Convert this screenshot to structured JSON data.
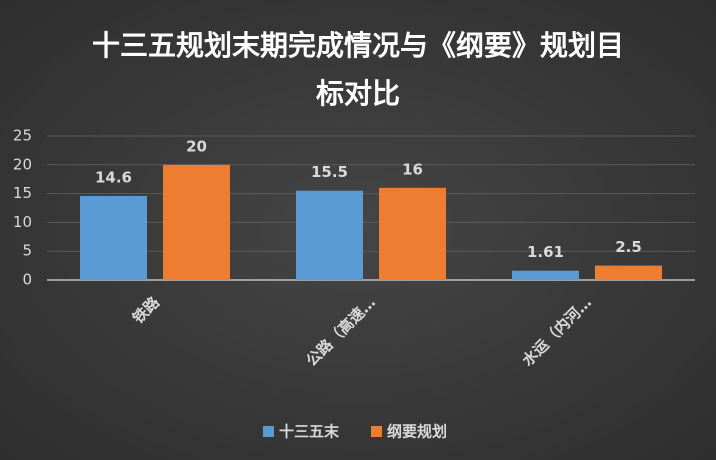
{
  "chart_data": {
    "type": "bar",
    "title": "十三五规划末期完成情况与《纲要》规划目标对比",
    "categories": [
      "铁路",
      "公路（高速…",
      "水运（内河…"
    ],
    "series": [
      {
        "name": "十三五末",
        "color": "#5b9bd5",
        "values": [
          14.6,
          15.5,
          1.61
        ]
      },
      {
        "name": "纲要规划",
        "color": "#ed7d31",
        "values": [
          20,
          16,
          2.5
        ]
      }
    ],
    "ylim": [
      0,
      25
    ],
    "yticks": [
      0,
      5,
      10,
      15,
      20,
      25
    ],
    "grid": true,
    "legend": "bottom"
  }
}
